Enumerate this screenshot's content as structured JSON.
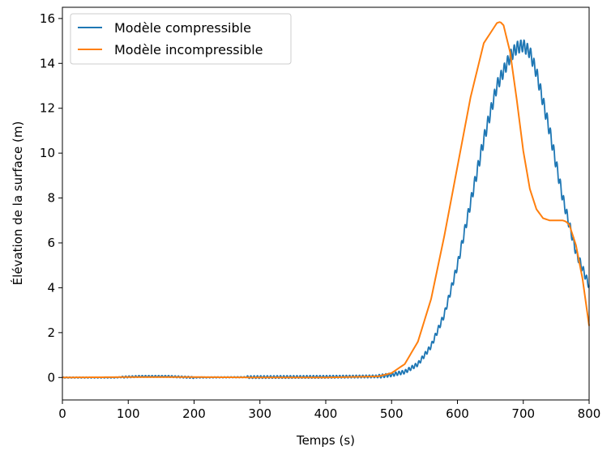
{
  "chart_data": {
    "type": "line",
    "title": "",
    "xlabel": "Temps (s)",
    "ylabel": "Élévation de la surface (m)",
    "xlim": [
      0,
      800
    ],
    "ylim": [
      -1,
      16.5
    ],
    "xticks": [
      0,
      100,
      200,
      300,
      400,
      500,
      600,
      700,
      800
    ],
    "yticks": [
      0,
      2,
      4,
      6,
      8,
      10,
      12,
      14,
      16
    ],
    "grid": false,
    "legend_position": "top-left",
    "series": [
      {
        "name": "Modèle compressible",
        "color": "#1f77b4",
        "oscillating": true,
        "x": [
          0,
          80,
          100,
          120,
          160,
          200,
          300,
          400,
          480,
          500,
          520,
          540,
          560,
          580,
          600,
          620,
          640,
          660,
          680,
          690,
          700,
          710,
          720,
          740,
          760,
          780,
          800
        ],
        "y": [
          0.0,
          0.0,
          0.03,
          0.05,
          0.05,
          0.0,
          0.02,
          0.03,
          0.05,
          0.12,
          0.25,
          0.6,
          1.4,
          2.8,
          5.0,
          7.8,
          10.6,
          13.0,
          14.3,
          14.7,
          14.8,
          14.5,
          13.6,
          11.0,
          8.0,
          5.6,
          4.1
        ]
      },
      {
        "name": "Modèle incompressible",
        "color": "#ff7f0e",
        "oscillating": false,
        "x": [
          0,
          100,
          200,
          300,
          400,
          480,
          500,
          520,
          540,
          560,
          580,
          600,
          620,
          640,
          660,
          665,
          670,
          680,
          690,
          700,
          710,
          720,
          730,
          740,
          750,
          760,
          765,
          770,
          780,
          790,
          800
        ],
        "y": [
          0.0,
          0.02,
          0.02,
          0.0,
          0.0,
          0.05,
          0.2,
          0.6,
          1.6,
          3.5,
          6.3,
          9.4,
          12.5,
          14.9,
          15.8,
          15.85,
          15.7,
          14.5,
          12.4,
          10.1,
          8.4,
          7.5,
          7.1,
          7.0,
          7.0,
          7.0,
          6.95,
          6.8,
          5.9,
          4.4,
          2.3
        ]
      }
    ]
  }
}
